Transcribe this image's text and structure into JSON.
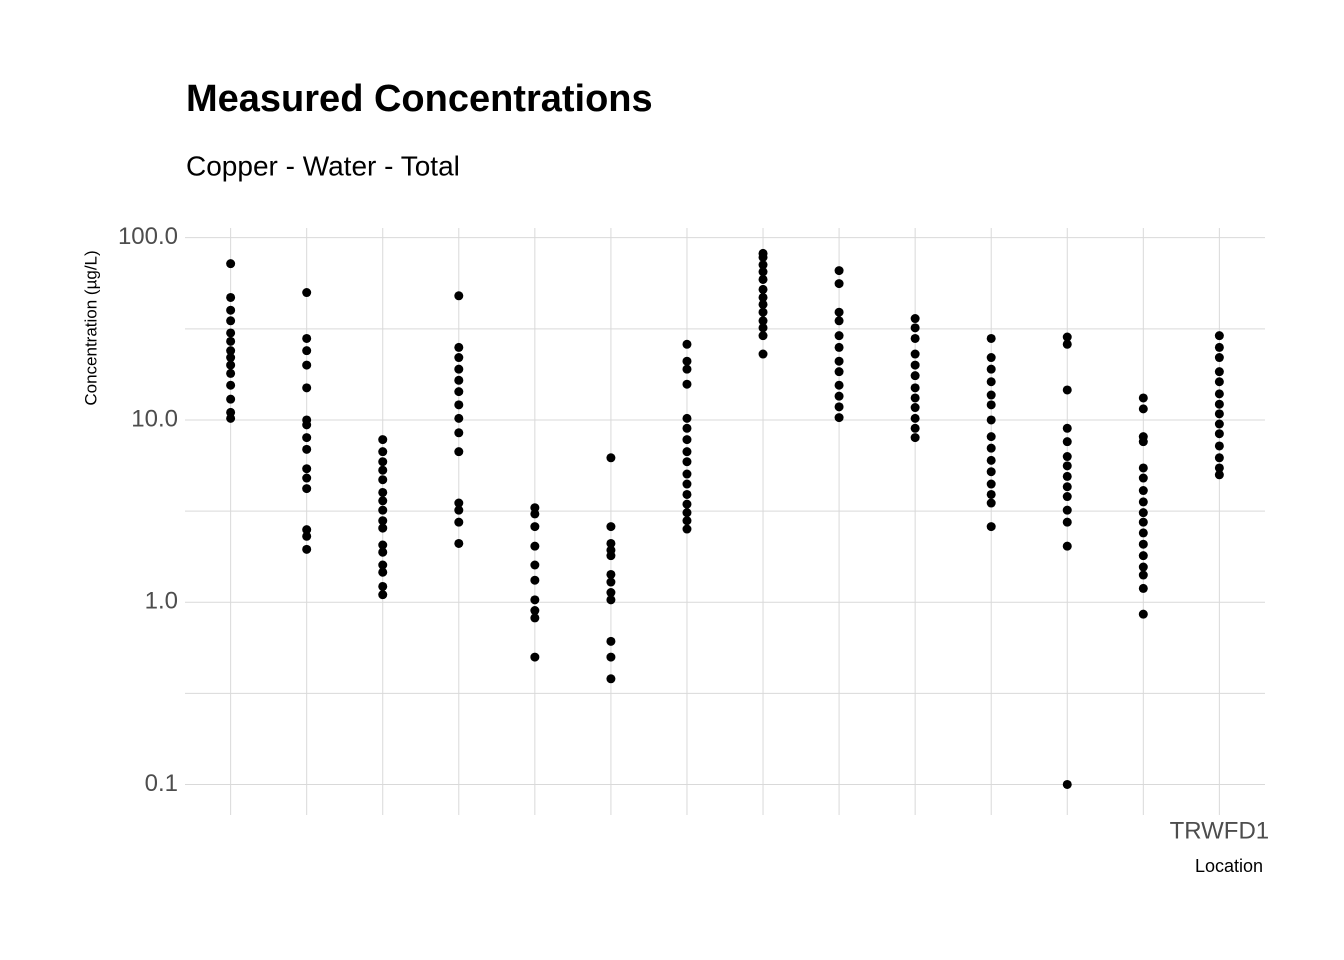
{
  "chart_data": {
    "type": "strip",
    "title": "Measured Concentrations",
    "subtitle": "Copper - Water - Total",
    "y_label": "Concentration (µg/L)",
    "x_label": "Location",
    "log_y": true,
    "grid": true,
    "color": "#000000",
    "ylim": [
      0.068,
      113
    ],
    "yticks": [
      0.1,
      {
        "value": 1,
        "label": "1.0"
      },
      {
        "value": 10,
        "label": "10.0"
      },
      {
        "value": 100,
        "label": "100.0"
      }
    ],
    "minor_yticks": [
      0.3162,
      3.162,
      31.62
    ],
    "categories": [
      null,
      null,
      null,
      null,
      null,
      null,
      null,
      null,
      null,
      null,
      null,
      null,
      null,
      "TRWFD1"
    ],
    "values": [
      [
        72,
        47,
        40,
        35,
        30,
        27,
        24,
        22,
        20,
        18,
        15.5,
        13,
        11,
        10.2
      ],
      [
        50,
        28,
        24,
        20,
        15,
        10,
        9.4,
        8,
        6.9,
        5.4,
        4.8,
        4.2,
        2.5,
        2.3,
        1.95
      ],
      [
        7.8,
        6.7,
        5.9,
        5.3,
        4.7,
        4.0,
        3.6,
        3.2,
        2.8,
        2.55,
        2.06,
        1.88,
        1.6,
        1.46,
        1.22,
        1.1
      ],
      [
        48,
        25,
        22,
        19,
        16.5,
        14.3,
        12.1,
        10.2,
        8.5,
        6.7,
        3.5,
        3.2,
        2.75,
        2.1
      ],
      [
        3.3,
        3.05,
        2.6,
        2.03,
        1.6,
        1.32,
        1.03,
        0.9,
        0.82,
        0.5
      ],
      [
        6.2,
        2.6,
        2.1,
        1.93,
        1.8,
        1.42,
        1.29,
        1.13,
        1.03,
        0.61,
        0.5,
        0.38
      ],
      [
        26,
        21,
        19,
        15.7,
        10.2,
        9.0,
        7.8,
        6.7,
        5.9,
        5.05,
        4.45,
        3.9,
        3.45,
        3.1,
        2.8,
        2.52
      ],
      [
        82,
        78,
        71,
        65,
        59,
        52,
        47,
        43,
        39,
        35,
        32,
        29,
        23
      ],
      [
        66,
        56,
        39,
        35,
        29,
        25,
        21,
        18.4,
        15.5,
        13.5,
        11.8,
        10.3
      ],
      [
        36,
        32,
        28,
        23,
        20,
        17.5,
        15,
        13.2,
        11.7,
        10.2,
        9.0,
        8.0
      ],
      [
        28,
        22,
        19,
        16.2,
        13.7,
        12.1,
        10,
        8.1,
        7.0,
        6.0,
        5.2,
        4.45,
        3.9,
        3.5,
        2.6
      ],
      [
        28.5,
        26,
        14.6,
        9.0,
        7.6,
        6.3,
        5.6,
        4.9,
        4.3,
        3.8,
        3.2,
        2.75,
        2.03,
        0.1
      ],
      [
        13.2,
        11.5,
        8.1,
        7.6,
        5.45,
        4.8,
        4.1,
        3.55,
        3.1,
        2.75,
        2.4,
        2.08,
        1.8,
        1.56,
        1.41,
        1.19,
        0.86
      ],
      [
        29,
        25,
        22,
        18.4,
        16.2,
        13.9,
        12.2,
        10.8,
        9.5,
        8.4,
        7.2,
        6.2,
        5.45,
        5.0
      ]
    ]
  }
}
